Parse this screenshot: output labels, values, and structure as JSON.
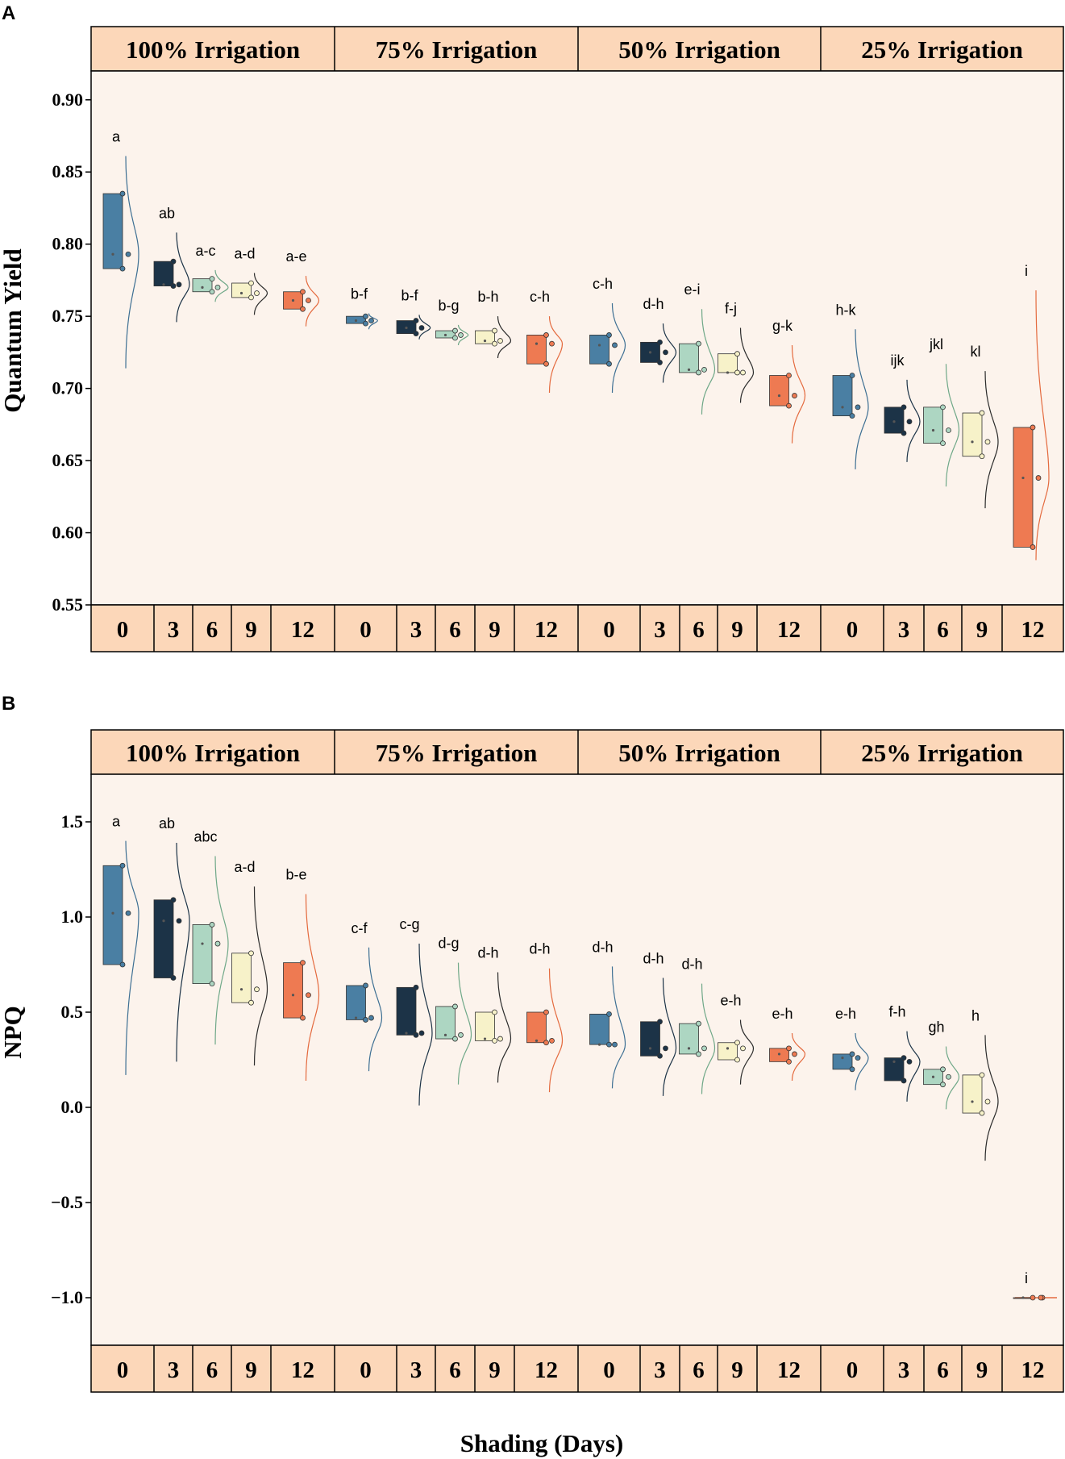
{
  "colors": {
    "plot_bg": "#fcf3ec",
    "strip_bg": "#fcd7b9",
    "border": "#000000",
    "days": [
      "#4a7fa3",
      "#1c3347",
      "#add6c2",
      "#f7f2c9",
      "#ee7a52"
    ],
    "curves": [
      "#3d6f93",
      "#1c3347",
      "#6fa888",
      "#2b2b2b",
      "#e46a3e"
    ]
  },
  "xlabel": "Shading (Days)",
  "facets": [
    "100% Irrigation",
    "75% Irrigation",
    "50% Irrigation",
    "25% Irrigation"
  ],
  "days": [
    "0",
    "3",
    "6",
    "9",
    "12"
  ],
  "chart_data": [
    {
      "panel": "A",
      "type": "box",
      "ylabel": "Quantum Yield",
      "ylim": [
        0.55,
        0.92
      ],
      "yticks": [
        0.55,
        0.6,
        0.65,
        0.7,
        0.75,
        0.8,
        0.85,
        0.9
      ],
      "yticklabels": [
        "0.55",
        "0.60",
        "0.65",
        "0.70",
        "0.75",
        "0.80",
        "0.85",
        "0.90"
      ],
      "groups": [
        {
          "facet": "100% Irrigation",
          "day": "0",
          "mean": 0.793,
          "low": 0.783,
          "high": 0.835,
          "points": [
            0.835,
            0.793,
            0.783
          ],
          "curve": [
            0.714,
            0.861
          ],
          "letter": "a"
        },
        {
          "facet": "100% Irrigation",
          "day": "3",
          "mean": 0.772,
          "low": 0.771,
          "high": 0.788,
          "points": [
            0.788,
            0.772,
            0.771
          ],
          "curve": [
            0.746,
            0.808
          ],
          "letter": "ab"
        },
        {
          "facet": "100% Irrigation",
          "day": "6",
          "mean": 0.77,
          "low": 0.767,
          "high": 0.776,
          "points": [
            0.776,
            0.77,
            0.767
          ],
          "curve": [
            0.76,
            0.782
          ],
          "letter": "a-c"
        },
        {
          "facet": "100% Irrigation",
          "day": "9",
          "mean": 0.766,
          "low": 0.763,
          "high": 0.773,
          "points": [
            0.773,
            0.766,
            0.763
          ],
          "curve": [
            0.751,
            0.78
          ],
          "letter": "a-d"
        },
        {
          "facet": "100% Irrigation",
          "day": "12",
          "mean": 0.761,
          "low": 0.755,
          "high": 0.767,
          "points": [
            0.767,
            0.761,
            0.755
          ],
          "curve": [
            0.743,
            0.778
          ],
          "letter": "a-e"
        },
        {
          "facet": "75% Irrigation",
          "day": "0",
          "mean": 0.747,
          "low": 0.745,
          "high": 0.75,
          "points": [
            0.75,
            0.747,
            0.745
          ],
          "curve": [
            0.741,
            0.752
          ],
          "letter": "b-f"
        },
        {
          "facet": "75% Irrigation",
          "day": "3",
          "mean": 0.742,
          "low": 0.738,
          "high": 0.747,
          "points": [
            0.747,
            0.742,
            0.738
          ],
          "curve": [
            0.734,
            0.751
          ],
          "letter": "b-f"
        },
        {
          "facet": "75% Irrigation",
          "day": "6",
          "mean": 0.737,
          "low": 0.735,
          "high": 0.74,
          "points": [
            0.74,
            0.737,
            0.735
          ],
          "curve": [
            0.73,
            0.744
          ],
          "letter": "b-g"
        },
        {
          "facet": "75% Irrigation",
          "day": "9",
          "mean": 0.733,
          "low": 0.731,
          "high": 0.74,
          "points": [
            0.74,
            0.733,
            0.731
          ],
          "curve": [
            0.721,
            0.75
          ],
          "letter": "b-h"
        },
        {
          "facet": "75% Irrigation",
          "day": "12",
          "mean": 0.731,
          "low": 0.717,
          "high": 0.737,
          "points": [
            0.737,
            0.731,
            0.717
          ],
          "curve": [
            0.697,
            0.75
          ],
          "letter": "c-h"
        },
        {
          "facet": "50% Irrigation",
          "day": "0",
          "mean": 0.73,
          "low": 0.717,
          "high": 0.737,
          "points": [
            0.737,
            0.73,
            0.717
          ],
          "curve": [
            0.697,
            0.759
          ],
          "letter": "c-h"
        },
        {
          "facet": "50% Irrigation",
          "day": "3",
          "mean": 0.725,
          "low": 0.718,
          "high": 0.732,
          "points": [
            0.732,
            0.725,
            0.718
          ],
          "curve": [
            0.704,
            0.745
          ],
          "letter": "d-h"
        },
        {
          "facet": "50% Irrigation",
          "day": "6",
          "mean": 0.713,
          "low": 0.711,
          "high": 0.731,
          "points": [
            0.731,
            0.713,
            0.711
          ],
          "curve": [
            0.682,
            0.755
          ],
          "letter": "e-i"
        },
        {
          "facet": "50% Irrigation",
          "day": "9",
          "mean": 0.711,
          "low": 0.711,
          "high": 0.724,
          "points": [
            0.724,
            0.711,
            0.711
          ],
          "curve": [
            0.69,
            0.742
          ],
          "letter": "f-j"
        },
        {
          "facet": "50% Irrigation",
          "day": "12",
          "mean": 0.695,
          "low": 0.688,
          "high": 0.709,
          "points": [
            0.709,
            0.695,
            0.688
          ],
          "curve": [
            0.662,
            0.73
          ],
          "letter": "g-k"
        },
        {
          "facet": "25% Irrigation",
          "day": "0",
          "mean": 0.687,
          "low": 0.681,
          "high": 0.709,
          "points": [
            0.709,
            0.687,
            0.681
          ],
          "curve": [
            0.644,
            0.741
          ],
          "letter": "h-k"
        },
        {
          "facet": "25% Irrigation",
          "day": "3",
          "mean": 0.677,
          "low": 0.669,
          "high": 0.687,
          "points": [
            0.687,
            0.677,
            0.669
          ],
          "curve": [
            0.649,
            0.706
          ],
          "letter": "ijk"
        },
        {
          "facet": "25% Irrigation",
          "day": "6",
          "mean": 0.671,
          "low": 0.662,
          "high": 0.687,
          "points": [
            0.687,
            0.671,
            0.662
          ],
          "curve": [
            0.632,
            0.717
          ],
          "letter": "jkl"
        },
        {
          "facet": "25% Irrigation",
          "day": "9",
          "mean": 0.663,
          "low": 0.653,
          "high": 0.683,
          "points": [
            0.683,
            0.663,
            0.653
          ],
          "curve": [
            0.617,
            0.712
          ],
          "letter": "kl"
        },
        {
          "facet": "25% Irrigation",
          "day": "12",
          "mean": 0.638,
          "low": 0.59,
          "high": 0.673,
          "points": [
            0.673,
            0.638,
            0.59
          ],
          "curve": [
            0.581,
            0.768
          ],
          "letter": "i"
        }
      ]
    },
    {
      "panel": "B",
      "type": "box",
      "ylabel": "NPQ",
      "ylim": [
        -1.25,
        1.75
      ],
      "yticks": [
        -1.0,
        -0.5,
        0.0,
        0.5,
        1.0,
        1.5
      ],
      "yticklabels": [
        "−1.0",
        "−0.5",
        "0.0",
        "0.5",
        "1.0",
        "1.5"
      ],
      "groups": [
        {
          "facet": "100% Irrigation",
          "day": "0",
          "mean": 1.02,
          "low": 0.75,
          "high": 1.27,
          "points": [
            1.27,
            1.02,
            0.75
          ],
          "curve": [
            0.17,
            1.4
          ],
          "letter": "a"
        },
        {
          "facet": "100% Irrigation",
          "day": "3",
          "mean": 0.98,
          "low": 0.68,
          "high": 1.09,
          "points": [
            1.09,
            0.98,
            0.68
          ],
          "curve": [
            0.24,
            1.39
          ],
          "letter": "ab"
        },
        {
          "facet": "100% Irrigation",
          "day": "6",
          "mean": 0.86,
          "low": 0.65,
          "high": 0.96,
          "points": [
            0.96,
            0.86,
            0.65
          ],
          "curve": [
            0.33,
            1.32
          ],
          "letter": "abc"
        },
        {
          "facet": "100% Irrigation",
          "day": "9",
          "mean": 0.62,
          "low": 0.55,
          "high": 0.81,
          "points": [
            0.81,
            0.62,
            0.55
          ],
          "curve": [
            0.22,
            1.16
          ],
          "letter": "a-d"
        },
        {
          "facet": "100% Irrigation",
          "day": "12",
          "mean": 0.59,
          "low": 0.47,
          "high": 0.76,
          "points": [
            0.76,
            0.59,
            0.47
          ],
          "curve": [
            0.14,
            1.12
          ],
          "letter": "b-e"
        },
        {
          "facet": "75% Irrigation",
          "day": "0",
          "mean": 0.47,
          "low": 0.46,
          "high": 0.64,
          "points": [
            0.64,
            0.47,
            0.46
          ],
          "curve": [
            0.19,
            0.84
          ],
          "letter": "c-f"
        },
        {
          "facet": "75% Irrigation",
          "day": "3",
          "mean": 0.39,
          "low": 0.38,
          "high": 0.63,
          "points": [
            0.63,
            0.39,
            0.38
          ],
          "curve": [
            0.01,
            0.86
          ],
          "letter": "c-g"
        },
        {
          "facet": "75% Irrigation",
          "day": "6",
          "mean": 0.38,
          "low": 0.36,
          "high": 0.53,
          "points": [
            0.53,
            0.38,
            0.36
          ],
          "curve": [
            0.12,
            0.76
          ],
          "letter": "d-g"
        },
        {
          "facet": "75% Irrigation",
          "day": "9",
          "mean": 0.36,
          "low": 0.35,
          "high": 0.5,
          "points": [
            0.5,
            0.36,
            0.35
          ],
          "curve": [
            0.13,
            0.71
          ],
          "letter": "d-h"
        },
        {
          "facet": "75% Irrigation",
          "day": "12",
          "mean": 0.35,
          "low": 0.34,
          "high": 0.5,
          "points": [
            0.5,
            0.35,
            0.34
          ],
          "curve": [
            0.08,
            0.73
          ],
          "letter": "d-h"
        },
        {
          "facet": "50% Irrigation",
          "day": "0",
          "mean": 0.33,
          "low": 0.33,
          "high": 0.49,
          "points": [
            0.49,
            0.33,
            0.33
          ],
          "curve": [
            0.1,
            0.74
          ],
          "letter": "d-h"
        },
        {
          "facet": "50% Irrigation",
          "day": "3",
          "mean": 0.31,
          "low": 0.27,
          "high": 0.45,
          "points": [
            0.45,
            0.31,
            0.27
          ],
          "curve": [
            0.06,
            0.68
          ],
          "letter": "d-h"
        },
        {
          "facet": "50% Irrigation",
          "day": "6",
          "mean": 0.31,
          "low": 0.28,
          "high": 0.44,
          "points": [
            0.44,
            0.31,
            0.28
          ],
          "curve": [
            0.07,
            0.65
          ],
          "letter": "d-h"
        },
        {
          "facet": "50% Irrigation",
          "day": "9",
          "mean": 0.31,
          "low": 0.25,
          "high": 0.34,
          "points": [
            0.34,
            0.31,
            0.25
          ],
          "curve": [
            0.12,
            0.46
          ],
          "letter": "e-h"
        },
        {
          "facet": "50% Irrigation",
          "day": "12",
          "mean": 0.28,
          "low": 0.24,
          "high": 0.31,
          "points": [
            0.31,
            0.28,
            0.24
          ],
          "curve": [
            0.14,
            0.39
          ],
          "letter": "e-h"
        },
        {
          "facet": "25% Irrigation",
          "day": "0",
          "mean": 0.26,
          "low": 0.2,
          "high": 0.28,
          "points": [
            0.28,
            0.26,
            0.2
          ],
          "curve": [
            0.09,
            0.39
          ],
          "letter": "e-h"
        },
        {
          "facet": "25% Irrigation",
          "day": "3",
          "mean": 0.24,
          "low": 0.14,
          "high": 0.26,
          "points": [
            0.26,
            0.24,
            0.14
          ],
          "curve": [
            0.03,
            0.4
          ],
          "letter": "f-h"
        },
        {
          "facet": "25% Irrigation",
          "day": "6",
          "mean": 0.16,
          "low": 0.12,
          "high": 0.2,
          "points": [
            0.2,
            0.16,
            0.12
          ],
          "curve": [
            -0.01,
            0.32
          ],
          "letter": "gh"
        },
        {
          "facet": "25% Irrigation",
          "day": "9",
          "mean": 0.03,
          "low": -0.03,
          "high": 0.17,
          "points": [
            0.17,
            0.03,
            -0.03
          ],
          "curve": [
            -0.28,
            0.38
          ],
          "letter": "h"
        },
        {
          "facet": "25% Irrigation",
          "day": "12",
          "mean": -1.0,
          "low": -1.0,
          "high": -1.0,
          "points": [
            -1.0,
            -1.0,
            -1.0
          ],
          "curve": [
            -1.0,
            -1.0
          ],
          "letter": "i"
        }
      ]
    }
  ]
}
